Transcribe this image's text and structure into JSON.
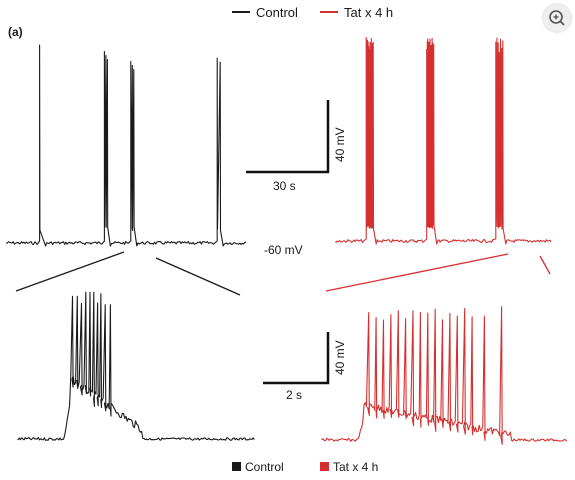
{
  "panel_label": "(a)",
  "legend_top": [
    {
      "name": "Control",
      "color": "#1a1a1a"
    },
    {
      "name": "Tat x 4 h",
      "color": "#d62f2f"
    }
  ],
  "legend_bottom": [
    {
      "name": "Control",
      "color": "#1a1a1a"
    },
    {
      "name": "Tat x 4 h",
      "color": "#d62f2f"
    }
  ],
  "scale_bars": {
    "top": {
      "voltage_label": "40 mV",
      "time_label": "30 s"
    },
    "bottom": {
      "voltage_label": "40 mV",
      "time_label": "2 s"
    }
  },
  "baseline_label": "-60 mV",
  "colors": {
    "control": "#1a1a1a",
    "tat": "#d62f2f"
  },
  "icons": {
    "zoom": "zoom-in-icon"
  },
  "chart_data": [
    {
      "type": "line",
      "name": "Control",
      "ylabel": "mV",
      "baseline_mV": -60,
      "duration_s": 100,
      "bursts": [
        {
          "t_s": 14,
          "peak_mV": 0,
          "spikes": 1
        },
        {
          "t_s": 41,
          "peak_mV": -2,
          "spikes": 3
        },
        {
          "t_s": 52,
          "peak_mV": -5,
          "spikes": 3
        },
        {
          "t_s": 88,
          "peak_mV": -4,
          "spikes": 2
        }
      ]
    },
    {
      "type": "line",
      "name": "Tat x 4 h",
      "ylabel": "mV",
      "baseline_mV": -60,
      "duration_s": 100,
      "bursts": [
        {
          "t_s": 14,
          "peak_mV": 0,
          "spikes": 12
        },
        {
          "t_s": 42,
          "peak_mV": 0,
          "spikes": 14
        },
        {
          "t_s": 74,
          "peak_mV": 0,
          "spikes": 7
        }
      ]
    },
    {
      "type": "line",
      "name": "Control (expanded)",
      "ylabel": "mV",
      "baseline_mV": -60,
      "duration_s": 10,
      "burst_start_s": 2.2,
      "spike_times_s": [
        2.3,
        2.5,
        2.68,
        2.86,
        3.04,
        3.2,
        3.36,
        3.5,
        3.68,
        3.9
      ],
      "peak_mV": 0,
      "plateau_mV": -35
    },
    {
      "type": "line",
      "name": "Tat x 4 h (expanded)",
      "ylabel": "mV",
      "baseline_mV": -60,
      "duration_s": 10,
      "burst_start_s": 1.7,
      "spike_times_s": [
        1.9,
        2.2,
        2.5,
        2.8,
        3.1,
        3.4,
        3.7,
        4.0,
        4.3,
        4.6,
        4.9,
        5.2,
        5.5,
        5.8,
        6.1,
        6.6,
        7.3
      ],
      "peak_mV": -2,
      "plateau_mV": -45
    }
  ]
}
